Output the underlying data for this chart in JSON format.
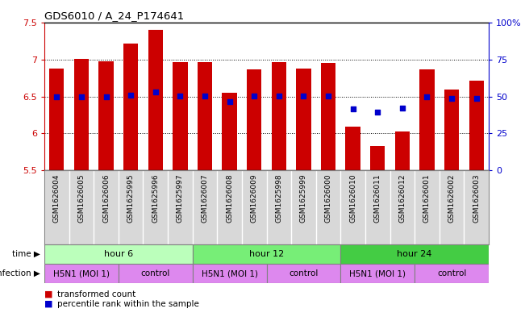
{
  "title": "GDS6010 / A_24_P174641",
  "samples": [
    "GSM1626004",
    "GSM1626005",
    "GSM1626006",
    "GSM1625995",
    "GSM1625996",
    "GSM1625997",
    "GSM1626007",
    "GSM1626008",
    "GSM1626009",
    "GSM1625998",
    "GSM1625999",
    "GSM1626000",
    "GSM1626010",
    "GSM1626011",
    "GSM1626012",
    "GSM1626001",
    "GSM1626002",
    "GSM1626003"
  ],
  "bar_values": [
    6.88,
    7.01,
    6.98,
    7.22,
    7.4,
    6.96,
    6.96,
    6.55,
    6.87,
    6.96,
    6.88,
    6.95,
    6.09,
    5.83,
    6.02,
    6.87,
    6.59,
    6.71
  ],
  "blue_dot_values": [
    6.5,
    6.5,
    6.5,
    6.52,
    6.56,
    6.51,
    6.51,
    6.43,
    6.51,
    6.51,
    6.51,
    6.51,
    6.33,
    6.29,
    6.34,
    6.49,
    6.47,
    6.47
  ],
  "ylim": [
    5.5,
    7.5
  ],
  "yticks": [
    5.5,
    6.0,
    6.5,
    7.0,
    7.5
  ],
  "ytick_labels": [
    "5.5",
    "6",
    "6.5",
    "7",
    "7.5"
  ],
  "right_yticks": [
    0,
    25,
    50,
    75,
    100
  ],
  "right_ytick_labels": [
    "0",
    "25",
    "50",
    "75",
    "100%"
  ],
  "bar_color": "#cc0000",
  "dot_color": "#0000cc",
  "bar_width": 0.6,
  "time_colors": [
    "#bbffbb",
    "#77ee77",
    "#44cc44"
  ],
  "time_groups": [
    {
      "label": "hour 6",
      "start": 0,
      "end": 6
    },
    {
      "label": "hour 12",
      "start": 6,
      "end": 12
    },
    {
      "label": "hour 24",
      "start": 12,
      "end": 18
    }
  ],
  "infection_color": "#dd88ee",
  "infection_groups": [
    {
      "label": "H5N1 (MOI 1)",
      "start": 0,
      "end": 3
    },
    {
      "label": "control",
      "start": 3,
      "end": 6
    },
    {
      "label": "H5N1 (MOI 1)",
      "start": 6,
      "end": 9
    },
    {
      "label": "control",
      "start": 9,
      "end": 12
    },
    {
      "label": "H5N1 (MOI 1)",
      "start": 12,
      "end": 15
    },
    {
      "label": "control",
      "start": 15,
      "end": 18
    }
  ],
  "sample_bg_color": "#d8d8d8",
  "legend_bar_label": "transformed count",
  "legend_dot_label": "percentile rank within the sample",
  "left_axis_color": "#cc0000",
  "right_axis_color": "#0000cc"
}
